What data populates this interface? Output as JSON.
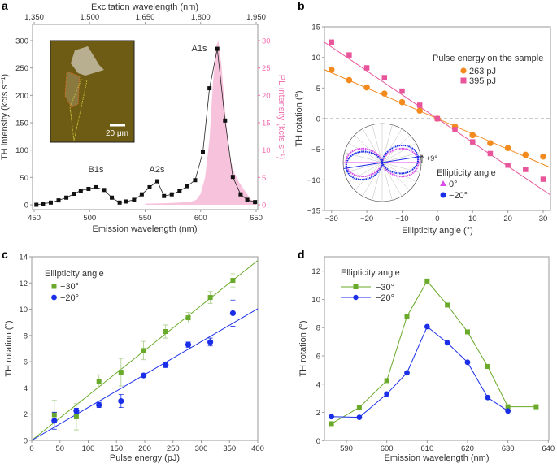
{
  "colors": {
    "orange": "#f28a1e",
    "pink": "#e8559a",
    "green": "#6aaa2a",
    "blue": "#1a2ee8",
    "pl_fill": "#f7c3dc",
    "pl_axis": "#f070b0",
    "magenta": "#d94ee8"
  },
  "panels": {
    "a": "a",
    "b": "b",
    "c": "c",
    "d": "d"
  },
  "chart_data": [
    {
      "panel": "a",
      "type": "line",
      "xlabel": "Emission wavelength (nm)",
      "ylabel": "TH intensity (kcts s⁻¹)",
      "top_xlabel": "Excitation wavelength (nm)",
      "right_ylabel": "PL intensity (kcts s⁻¹)",
      "xlim": [
        450,
        650
      ],
      "ylim": [
        0,
        300
      ],
      "right_ylim": [
        0,
        30
      ],
      "top_xlim": [
        1350,
        1950
      ],
      "xticks": [
        450,
        500,
        550,
        600,
        650
      ],
      "yticks": [
        0,
        50,
        100,
        150,
        200,
        250,
        300
      ],
      "right_yticks": [
        0,
        5,
        10,
        15,
        20,
        25,
        30
      ],
      "top_xticks": [
        "1,350",
        "1,500",
        "1,650",
        "1,800",
        "1,950"
      ],
      "annotations": [
        "B1s",
        "A2s",
        "A1s"
      ],
      "inset_scale_label": "20 μm",
      "series": [
        {
          "name": "TH intensity",
          "x": [
            452,
            458,
            465,
            472,
            479,
            486,
            492,
            499,
            506,
            513,
            520,
            527,
            533,
            540,
            547,
            554,
            561,
            567,
            574,
            581,
            588,
            595,
            602,
            608,
            615,
            622,
            629,
            636,
            642,
            649
          ],
          "y": [
            0,
            2,
            4,
            8,
            13,
            20,
            26,
            29,
            32,
            27,
            13,
            4,
            6,
            9,
            19,
            32,
            43,
            16,
            19,
            25,
            34,
            45,
            96,
            213,
            285,
            154,
            51,
            19,
            9,
            5
          ]
        },
        {
          "name": "PL intensity",
          "type": "area",
          "axis": "right",
          "x": [
            550,
            570,
            590,
            596,
            600,
            604,
            608,
            611,
            614,
            616,
            619,
            622,
            626,
            630,
            635,
            640,
            645,
            650
          ],
          "y": [
            0.2,
            0.3,
            0.5,
            0.9,
            2,
            5,
            12,
            22,
            29,
            30,
            25,
            17,
            9,
            6,
            4,
            2.5,
            1,
            0.4
          ]
        }
      ]
    },
    {
      "panel": "b",
      "type": "scatter",
      "xlabel": "Ellipticity angle (°)",
      "ylabel": "TH rotation (°)",
      "xlim": [
        -32,
        32
      ],
      "ylim": [
        -15,
        15
      ],
      "xticks": [
        -30,
        -20,
        -10,
        0,
        10,
        20,
        30
      ],
      "yticks": [
        -15,
        -10,
        -5,
        0,
        5,
        10,
        15
      ],
      "legend_title": "Pulse energy on the sample",
      "inset_legend_title": "Ellipticity angle",
      "inset_legend": [
        "0°",
        "−20°"
      ],
      "inset_annotation": "+9°",
      "series": [
        {
          "name": "263 pJ",
          "x": [
            -30,
            -25,
            -20,
            -15,
            -10,
            -5,
            0,
            5,
            10,
            15,
            20,
            25,
            30
          ],
          "y": [
            8.0,
            6.3,
            5.1,
            4.1,
            2.7,
            1.3,
            0,
            -1.3,
            -2.7,
            -4.0,
            -4.8,
            -5.9,
            -6.2
          ],
          "fit_slope": -0.25
        },
        {
          "name": "395 pJ",
          "x": [
            -30,
            -25,
            -20,
            -15,
            -10,
            -5,
            0,
            5,
            10,
            15,
            20,
            25,
            30
          ],
          "y": [
            12.5,
            10.4,
            8.3,
            6.7,
            4.5,
            2.2,
            0,
            -1.8,
            -3.8,
            -5.7,
            -7.6,
            -8.3,
            -9.9
          ],
          "fit_slope": -0.39
        }
      ]
    },
    {
      "panel": "c",
      "type": "scatter",
      "xlabel": "Pulse energy (pJ)",
      "ylabel": "TH rotation (°)",
      "xlim": [
        0,
        400
      ],
      "ylim": [
        0,
        14
      ],
      "xticks": [
        0,
        50,
        100,
        150,
        200,
        250,
        300,
        350,
        400
      ],
      "yticks": [
        0,
        2,
        4,
        6,
        8,
        10,
        12,
        14
      ],
      "legend_title": "Ellipticity angle",
      "series": [
        {
          "name": "−30°",
          "x": [
            40,
            79,
            119,
            158,
            198,
            237,
            277,
            316,
            356
          ],
          "y": [
            1.95,
            1.8,
            4.5,
            5.2,
            6.85,
            8.3,
            9.35,
            10.9,
            12.2
          ],
          "err": [
            1.1,
            1.0,
            0.5,
            1.05,
            0.7,
            0.5,
            0.4,
            0.45,
            0.5
          ],
          "fit_slope": 0.0343
        },
        {
          "name": "−20°",
          "x": [
            40,
            79,
            119,
            158,
            198,
            237,
            277,
            316,
            356
          ],
          "y": [
            1.5,
            2.25,
            2.7,
            3.0,
            4.95,
            5.75,
            7.3,
            7.5,
            9.7
          ],
          "err": [
            0.65,
            0.2,
            0.2,
            0.5,
            0.1,
            0.2,
            0.2,
            0.3,
            1.0
          ],
          "fit_slope": 0.0251
        }
      ]
    },
    {
      "panel": "d",
      "type": "line",
      "xlabel": "Emission wavelength (nm)",
      "ylabel": "TH rotation (°)",
      "xlim": [
        585,
        640
      ],
      "ylim": [
        0,
        13
      ],
      "xticks": [
        590,
        600,
        610,
        620,
        630,
        640
      ],
      "yticks": [
        0,
        2,
        4,
        6,
        8,
        10,
        12
      ],
      "legend_title": "Ellipticity angle",
      "series": [
        {
          "name": "−30°",
          "x": [
            586.3,
            593.2,
            600,
            605,
            610,
            615,
            620,
            625,
            630,
            637
          ],
          "y": [
            1.2,
            2.35,
            4.25,
            8.8,
            11.3,
            9.6,
            7.7,
            5.25,
            2.4,
            2.4
          ]
        },
        {
          "name": "−20°",
          "x": [
            586.3,
            593.2,
            600,
            605,
            610,
            615,
            620,
            625,
            630
          ],
          "y": [
            1.7,
            1.65,
            3.3,
            4.8,
            8.07,
            6.93,
            5.55,
            3.05,
            2.1
          ]
        }
      ]
    }
  ]
}
